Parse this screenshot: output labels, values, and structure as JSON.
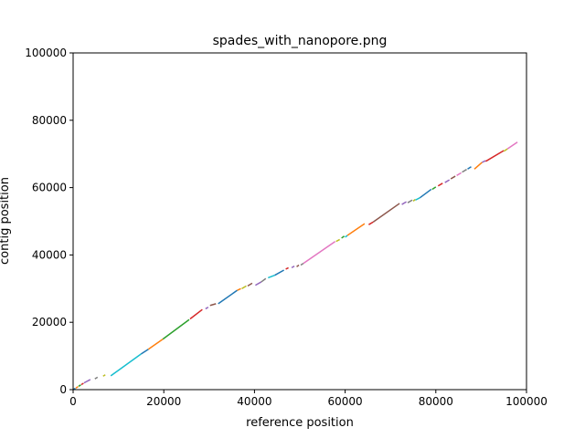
{
  "chart_data": {
    "type": "line",
    "title": "spades_with_nanopore.png",
    "xlabel": "reference position",
    "ylabel": "contig position",
    "xlim": [
      0,
      100000
    ],
    "ylim": [
      0,
      100000
    ],
    "xticks": [
      0,
      20000,
      40000,
      60000,
      80000,
      100000
    ],
    "yticks": [
      0,
      20000,
      40000,
      60000,
      80000,
      100000
    ],
    "xtick_labels": [
      "0",
      "20000",
      "40000",
      "60000",
      "80000",
      "100000"
    ],
    "ytick_labels": [
      "0",
      "20000",
      "40000",
      "60000",
      "80000",
      "100000"
    ],
    "grid": false,
    "legend": "none",
    "colors": [
      "#1f77b4",
      "#ff7f0e",
      "#2ca02c",
      "#d62728",
      "#9467bd",
      "#8c564b",
      "#e377c2",
      "#7f7f7f",
      "#bcbd22",
      "#17becf"
    ],
    "series": [
      {
        "color": "#1f77b4",
        "x": [
          0,
          500
        ],
        "y": [
          0,
          400
        ]
      },
      {
        "color": "#ff7f0e",
        "x": [
          600,
          1100
        ],
        "y": [
          450,
          900
        ]
      },
      {
        "color": "#2ca02c",
        "x": [
          1200,
          1700
        ],
        "y": [
          1000,
          1400
        ]
      },
      {
        "color": "#d62728",
        "x": [
          1800,
          2300
        ],
        "y": [
          1500,
          1900
        ]
      },
      {
        "color": "#9467bd",
        "x": [
          2400,
          3800
        ],
        "y": [
          2000,
          3000
        ]
      },
      {
        "color": "#7f7f7f",
        "x": [
          4800,
          5400
        ],
        "y": [
          3200,
          3700
        ]
      },
      {
        "color": "#bcbd22",
        "x": [
          6600,
          7100
        ],
        "y": [
          4000,
          4400
        ]
      },
      {
        "color": "#17becf",
        "x": [
          8300,
          15000
        ],
        "y": [
          4100,
          10600
        ]
      },
      {
        "color": "#1f77b4",
        "x": [
          15000,
          16600
        ],
        "y": [
          10600,
          12000
        ]
      },
      {
        "color": "#ff7f0e",
        "x": [
          16600,
          19800
        ],
        "y": [
          12000,
          15000
        ]
      },
      {
        "color": "#2ca02c",
        "x": [
          19800,
          25600
        ],
        "y": [
          15000,
          20800
        ]
      },
      {
        "color": "#d62728",
        "x": [
          25800,
          28500
        ],
        "y": [
          21000,
          23800
        ]
      },
      {
        "color": "#9467bd",
        "x": [
          29200,
          29800
        ],
        "y": [
          24000,
          24500
        ]
      },
      {
        "color": "#8c564b",
        "x": [
          30200,
          31500
        ],
        "y": [
          25000,
          25500
        ]
      },
      {
        "color": "#1f77b4",
        "x": [
          32000,
          36200
        ],
        "y": [
          25500,
          29500
        ]
      },
      {
        "color": "#ff7f0e",
        "x": [
          36200,
          37000
        ],
        "y": [
          29500,
          30000
        ]
      },
      {
        "color": "#bcbd22",
        "x": [
          37200,
          38200
        ],
        "y": [
          30000,
          30800
        ]
      },
      {
        "color": "#8c564b",
        "x": [
          38500,
          39500
        ],
        "y": [
          30800,
          31600
        ]
      },
      {
        "color": "#9467bd",
        "x": [
          40200,
          41500
        ],
        "y": [
          31000,
          32000
        ]
      },
      {
        "color": "#7f7f7f",
        "x": [
          41500,
          42500
        ],
        "y": [
          32000,
          33000
        ]
      },
      {
        "color": "#17becf",
        "x": [
          43000,
          44500
        ],
        "y": [
          33200,
          34000
        ]
      },
      {
        "color": "#1f77b4",
        "x": [
          44500,
          46500
        ],
        "y": [
          34000,
          35500
        ]
      },
      {
        "color": "#d62728",
        "x": [
          46900,
          47500
        ],
        "y": [
          35800,
          36200
        ]
      },
      {
        "color": "#9467bd",
        "x": [
          48200,
          48800
        ],
        "y": [
          36200,
          36700
        ]
      },
      {
        "color": "#8c564b",
        "x": [
          49300,
          49800
        ],
        "y": [
          36500,
          37000
        ]
      },
      {
        "color": "#7f7f7f",
        "x": [
          50200,
          50800
        ],
        "y": [
          37000,
          37500
        ]
      },
      {
        "color": "#e377c2",
        "x": [
          50800,
          57800
        ],
        "y": [
          37500,
          44000
        ]
      },
      {
        "color": "#bcbd22",
        "x": [
          58000,
          58800
        ],
        "y": [
          44000,
          44600
        ]
      },
      {
        "color": "#2ca02c",
        "x": [
          59200,
          59800
        ],
        "y": [
          45000,
          45600
        ]
      },
      {
        "color": "#17becf",
        "x": [
          60000,
          60500
        ],
        "y": [
          45300,
          45800
        ]
      },
      {
        "color": "#ff7f0e",
        "x": [
          60500,
          64300
        ],
        "y": [
          45800,
          49300
        ]
      },
      {
        "color": "#d62728",
        "x": [
          65200,
          66200
        ],
        "y": [
          49000,
          49800
        ]
      },
      {
        "color": "#8c564b",
        "x": [
          66200,
          72000
        ],
        "y": [
          49800,
          55300
        ]
      },
      {
        "color": "#9467bd",
        "x": [
          72500,
          73500
        ],
        "y": [
          55000,
          55800
        ]
      },
      {
        "color": "#7f7f7f",
        "x": [
          73800,
          74800
        ],
        "y": [
          55500,
          56300
        ]
      },
      {
        "color": "#bcbd22",
        "x": [
          75000,
          75500
        ],
        "y": [
          56000,
          56500
        ]
      },
      {
        "color": "#17becf",
        "x": [
          75500,
          76500
        ],
        "y": [
          56300,
          57000
        ]
      },
      {
        "color": "#1f77b4",
        "x": [
          76500,
          79000
        ],
        "y": [
          57000,
          59500
        ]
      },
      {
        "color": "#2ca02c",
        "x": [
          79200,
          80000
        ],
        "y": [
          59500,
          60200
        ]
      },
      {
        "color": "#d62728",
        "x": [
          80500,
          81500
        ],
        "y": [
          60500,
          61300
        ]
      },
      {
        "color": "#9467bd",
        "x": [
          82000,
          83000
        ],
        "y": [
          61500,
          62300
        ]
      },
      {
        "color": "#8c564b",
        "x": [
          83300,
          84300
        ],
        "y": [
          62600,
          63400
        ]
      },
      {
        "color": "#e377c2",
        "x": [
          84600,
          85600
        ],
        "y": [
          63600,
          64400
        ]
      },
      {
        "color": "#7f7f7f",
        "x": [
          85800,
          86800
        ],
        "y": [
          64600,
          65400
        ]
      },
      {
        "color": "#1f77b4",
        "x": [
          87000,
          87800
        ],
        "y": [
          65500,
          66200
        ]
      },
      {
        "color": "#ff7f0e",
        "x": [
          88500,
          90200
        ],
        "y": [
          65500,
          67500
        ]
      },
      {
        "color": "#9467bd",
        "x": [
          90200,
          91000
        ],
        "y": [
          67500,
          68000
        ]
      },
      {
        "color": "#d62728",
        "x": [
          91000,
          95000
        ],
        "y": [
          67800,
          71000
        ]
      },
      {
        "color": "#bcbd22",
        "x": [
          95000,
          95800
        ],
        "y": [
          70800,
          71500
        ]
      },
      {
        "color": "#e377c2",
        "x": [
          95800,
          98000
        ],
        "y": [
          71500,
          73500
        ]
      }
    ]
  }
}
